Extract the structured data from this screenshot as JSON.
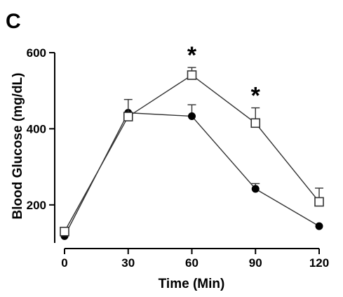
{
  "panel_label": "C",
  "chart_data": {
    "type": "line",
    "xlabel": "Time (Min)",
    "ylabel": "Blood Glucose (mg/dL)",
    "x": [
      0,
      30,
      60,
      90,
      120
    ],
    "x_ticks": [
      "0",
      "30",
      "60",
      "90",
      "120"
    ],
    "y_ticks": [
      "200",
      "400",
      "600"
    ],
    "xlim": [
      0,
      120
    ],
    "ylim": [
      100,
      600
    ],
    "grid": false,
    "legend": "none",
    "series": [
      {
        "marker": "filled-circle",
        "color": "#000000",
        "values": [
          118,
          442,
          433,
          242,
          144
        ],
        "errors": [
          0,
          0,
          30,
          14,
          0
        ]
      },
      {
        "marker": "open-square",
        "color": "#000000",
        "values": [
          130,
          432,
          541,
          415,
          208
        ],
        "errors": [
          0,
          45,
          20,
          40,
          36
        ]
      }
    ],
    "significance": [
      {
        "x": 60,
        "label": "*"
      },
      {
        "x": 90,
        "label": "*"
      }
    ]
  }
}
